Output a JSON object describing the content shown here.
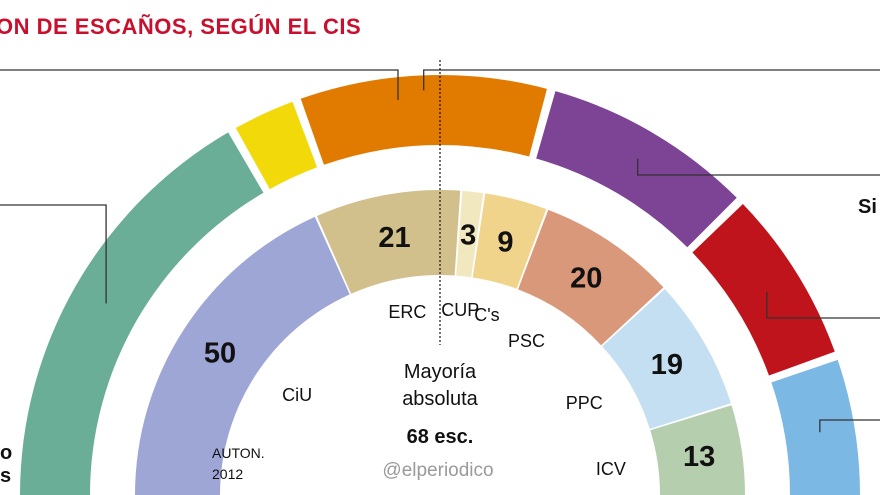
{
  "page_title": "ON DE ESCAÑOS, SEGÚN EL CIS",
  "outer_cut_label": "Si",
  "left_bottom_labels": [
    "o",
    "s"
  ],
  "majority": {
    "line1": "Mayoría",
    "line2": "absoluta",
    "line3": "68 esc."
  },
  "inner_caption": {
    "line1": "AUTON.",
    "line2": "2012"
  },
  "credit": "@elperiodico",
  "colors": {
    "title": "#c8102e",
    "outer": [
      "#6aae97",
      "#f1d90a",
      "#e07b00",
      "#7d4394",
      "#c0141c",
      "#7bb8e3"
    ],
    "inner": [
      "#9ea6d6",
      "#d2c08c",
      "#f2e8bf",
      "#f0d48c",
      "#d9987a",
      "#c4def2",
      "#b5cfae"
    ]
  },
  "chart_data": [
    {
      "type": "semicircle",
      "title": "",
      "note": "outer ring, unlabeled series (values partly cropped)",
      "values": [
        35,
        5,
        20,
        17,
        14,
        11
      ]
    },
    {
      "type": "semicircle",
      "title": "",
      "categories": [
        "CiU",
        "ERC",
        "CUP",
        "C's",
        "PSC",
        "PPC",
        "ICV"
      ],
      "values": [
        50,
        21,
        3,
        9,
        20,
        19,
        13
      ],
      "show_value_on": [
        true,
        true,
        true,
        true,
        true,
        true,
        true
      ]
    }
  ]
}
